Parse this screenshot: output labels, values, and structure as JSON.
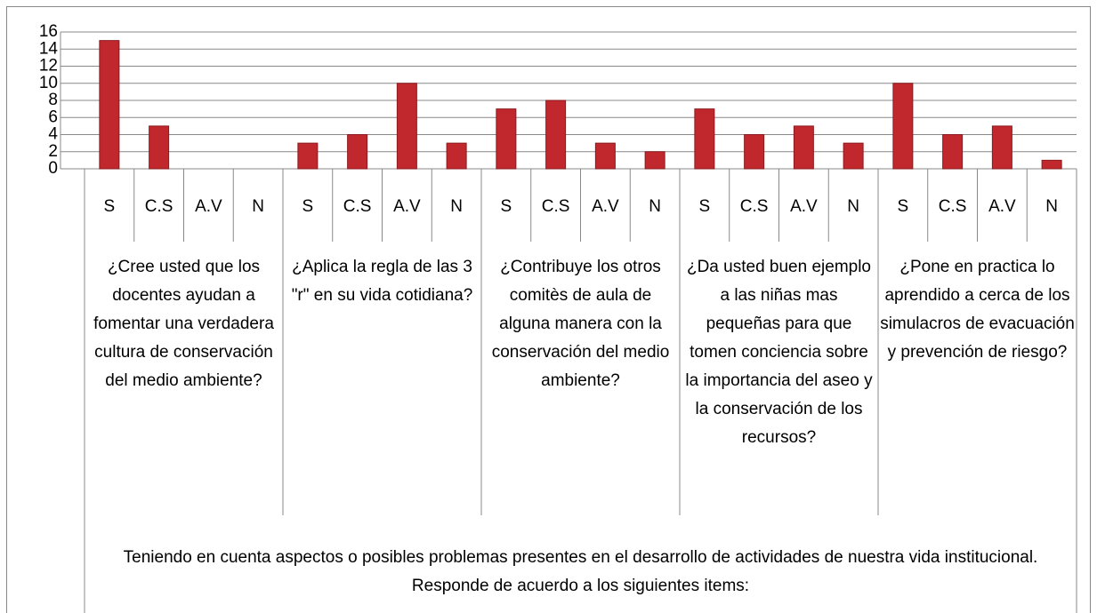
{
  "chart_data": {
    "type": "bar",
    "categories": [
      "S",
      "C.S",
      "A.V",
      "N",
      "S",
      "C.S",
      "A.V",
      "N",
      "S",
      "C.S",
      "A.V",
      "N",
      "S",
      "C.S",
      "A.V",
      "N",
      "S",
      "C.S",
      "A.V",
      "N"
    ],
    "groups": [
      "¿Cree usted que los docentes ayudan a fomentar una verdadera cultura de conservación del medio ambiente?",
      "¿Aplica la regla de las 3 \"r\" en su vida cotidiana?",
      "¿Contribuye los otros comitès de aula de alguna manera con la conservación del medio ambiente?",
      "¿Da usted buen ejemplo a las niñas mas pequeñas para que tomen conciencia sobre la importancia del aseo y la conservación de los recursos?",
      "¿Pone en practica lo aprendido a cerca de los simulacros de evacuación y prevención de riesgo?"
    ],
    "values": [
      15,
      5,
      0,
      0,
      3,
      4,
      10,
      3,
      7,
      8,
      3,
      2,
      7,
      4,
      5,
      3,
      10,
      4,
      5,
      1
    ],
    "color": "#c0282d",
    "x_label": "Teniendo en cuenta aspectos o posibles problemas presentes en el desarrollo de actividades de nuestra vida institucional. Responde de acuerdo a los siguientes items:",
    "ylim": [
      0,
      16
    ],
    "yticks": [
      0,
      2,
      4,
      6,
      8,
      10,
      12,
      14,
      16
    ],
    "grid": true
  }
}
